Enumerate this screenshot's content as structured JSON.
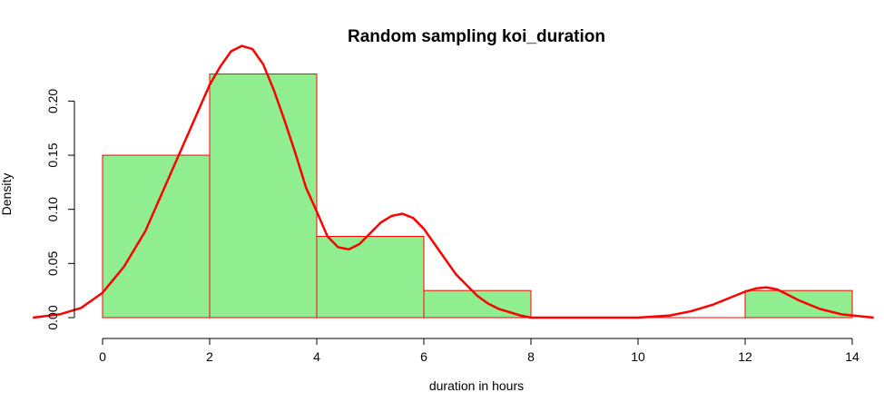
{
  "chart_data": {
    "type": "bar",
    "title": "Random sampling koi_duration",
    "xlabel": "duration in hours",
    "ylabel": "Density",
    "xlim": [
      -1.3,
      14.4
    ],
    "ylim": [
      0,
      0.228
    ],
    "x_ticks": [
      "0",
      "2",
      "4",
      "6",
      "8",
      "10",
      "12",
      "14"
    ],
    "y_ticks": [
      "0.00",
      "0.05",
      "0.10",
      "0.15",
      "0.20"
    ],
    "bins": [
      {
        "x0": 0,
        "x1": 2,
        "density": 0.15
      },
      {
        "x0": 2,
        "x1": 4,
        "density": 0.225
      },
      {
        "x0": 4,
        "x1": 6,
        "density": 0.075
      },
      {
        "x0": 6,
        "x1": 8,
        "density": 0.025
      },
      {
        "x0": 8,
        "x1": 10,
        "density": 0
      },
      {
        "x0": 10,
        "x1": 12,
        "density": 0
      },
      {
        "x0": 12,
        "x1": 14,
        "density": 0.025
      }
    ],
    "density_curve": {
      "name": "density",
      "x": [
        -1.3,
        -0.8,
        -0.4,
        0,
        0.4,
        0.8,
        1.2,
        1.6,
        2.0,
        2.2,
        2.4,
        2.6,
        2.8,
        3.0,
        3.2,
        3.4,
        3.6,
        3.8,
        4.0,
        4.2,
        4.4,
        4.6,
        4.8,
        5.0,
        5.2,
        5.4,
        5.6,
        5.8,
        6.0,
        6.2,
        6.4,
        6.6,
        6.8,
        7.0,
        7.2,
        7.4,
        7.6,
        7.8,
        8.0,
        8.4,
        9.0,
        10.0,
        10.6,
        11.0,
        11.4,
        11.8,
        12.0,
        12.2,
        12.4,
        12.6,
        12.8,
        13.0,
        13.4,
        13.8,
        14.0,
        14.4
      ],
      "y": [
        0.0,
        0.003,
        0.009,
        0.023,
        0.047,
        0.08,
        0.125,
        0.17,
        0.215,
        0.232,
        0.246,
        0.251,
        0.248,
        0.234,
        0.21,
        0.182,
        0.152,
        0.12,
        0.098,
        0.075,
        0.065,
        0.063,
        0.068,
        0.078,
        0.088,
        0.094,
        0.096,
        0.092,
        0.082,
        0.068,
        0.054,
        0.04,
        0.03,
        0.02,
        0.013,
        0.008,
        0.005,
        0.002,
        0.0,
        0.0,
        0.0,
        0.0,
        0.002,
        0.006,
        0.012,
        0.02,
        0.024,
        0.027,
        0.028,
        0.026,
        0.021,
        0.016,
        0.008,
        0.003,
        0.002,
        0.0
      ]
    },
    "colors": {
      "bar_fill": "#90ee90",
      "bar_border": "#ff0000",
      "curve": "#ff0000"
    },
    "grid": false,
    "legend": "none"
  }
}
